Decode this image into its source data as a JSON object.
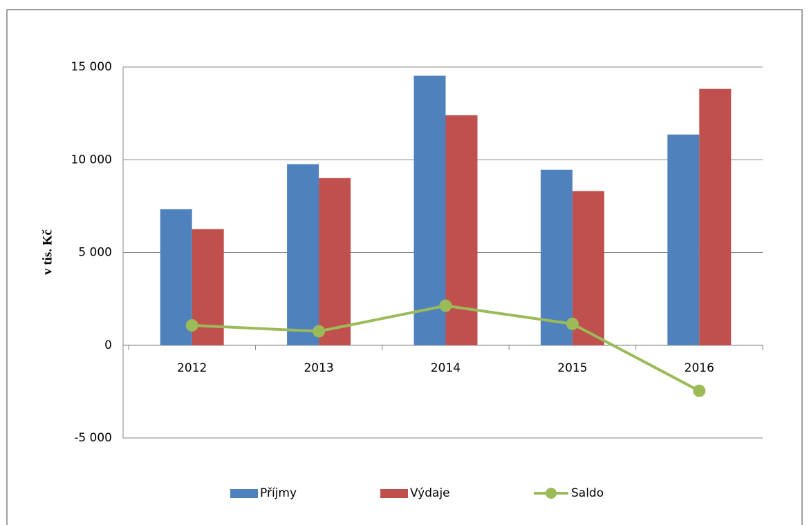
{
  "chart_data": {
    "type": "bar",
    "ylabel": "v tis. Kč",
    "categories": [
      "2012",
      "2013",
      "2014",
      "2015",
      "2016"
    ],
    "series": [
      {
        "name": "Příjmy",
        "color": "#4f81bd",
        "type": "bar",
        "values": [
          7330,
          9760,
          14530,
          9460,
          11360
        ]
      },
      {
        "name": "Výdaje",
        "color": "#c0504d",
        "type": "bar",
        "values": [
          6260,
          9010,
          12400,
          8310,
          13820
        ]
      },
      {
        "name": "Saldo",
        "color": "#9bbb59",
        "type": "line",
        "values": [
          1070,
          750,
          2130,
          1150,
          -2460
        ]
      }
    ],
    "ylim": [
      -5000,
      15000
    ],
    "yticks": [
      {
        "value": -5000,
        "label": "-5 000"
      },
      0,
      {
        "value": 5000,
        "label": "5 000"
      },
      {
        "value": 10000,
        "label": "10 000"
      },
      {
        "value": 15000,
        "label": "15 000"
      }
    ],
    "grid": true,
    "legend": "bottom"
  }
}
